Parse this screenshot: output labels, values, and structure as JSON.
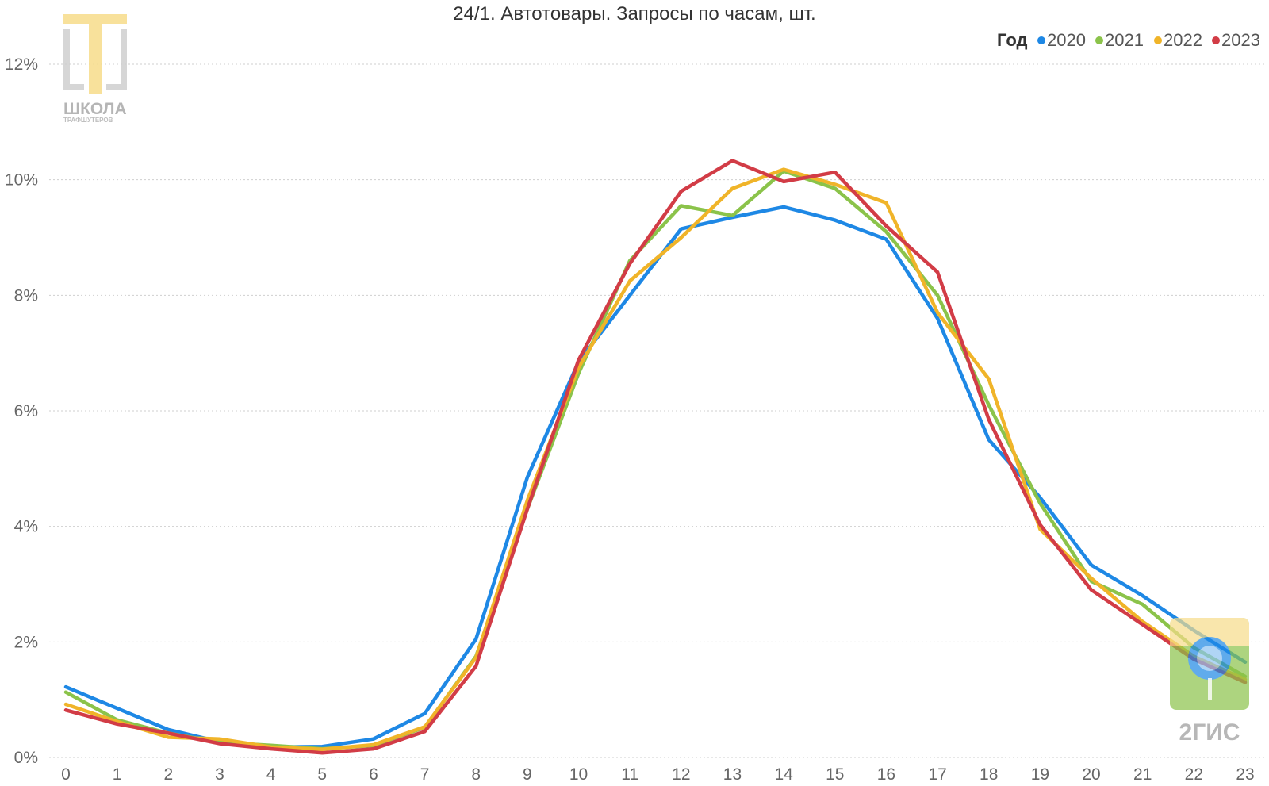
{
  "watermarks": {
    "school_logo": {
      "line1": "ШКОЛА",
      "line2": "ТРАФШУТЕРОВ"
    },
    "gis_logo": {
      "text": "2ГИС"
    }
  },
  "colors": {
    "2020": "#1e88e5",
    "2021": "#8bc34a",
    "2022": "#f0b429",
    "2023": "#d23c46"
  },
  "chart_data": {
    "type": "line",
    "title": "24/1. Автотовары. Запросы по часам, шт.",
    "xlabel": "",
    "ylabel": "",
    "legend_title": "Год",
    "legend_position": "top-right",
    "grid": true,
    "x": [
      0,
      1,
      2,
      3,
      4,
      5,
      6,
      7,
      8,
      9,
      10,
      11,
      12,
      13,
      14,
      15,
      16,
      17,
      18,
      19,
      20,
      21,
      22,
      23
    ],
    "x_tick_labels": [
      "0",
      "1",
      "2",
      "3",
      "4",
      "5",
      "6",
      "7",
      "8",
      "9",
      "10",
      "11",
      "12",
      "13",
      "14",
      "15",
      "16",
      "17",
      "18",
      "19",
      "20",
      "21",
      "22",
      "23"
    ],
    "ylim": [
      0,
      12.4
    ],
    "y_ticks": [
      0,
      2,
      4,
      6,
      8,
      10,
      12
    ],
    "y_tick_labels": [
      "0%",
      "2%",
      "4%",
      "6%",
      "8%",
      "10%",
      "12%"
    ],
    "series": [
      {
        "name": "2020",
        "color": "#1e88e5",
        "values": [
          1.22,
          0.85,
          0.48,
          0.27,
          0.18,
          0.19,
          0.32,
          0.76,
          2.05,
          4.85,
          6.85,
          8.0,
          9.15,
          9.35,
          9.53,
          9.3,
          8.97,
          7.6,
          5.5,
          4.5,
          3.33,
          2.8,
          2.2,
          1.65
        ]
      },
      {
        "name": "2021",
        "color": "#8bc34a",
        "values": [
          1.13,
          0.65,
          0.42,
          0.26,
          0.21,
          0.15,
          0.21,
          0.52,
          1.75,
          4.3,
          6.65,
          8.6,
          9.55,
          9.38,
          10.15,
          9.85,
          9.1,
          8.0,
          6.1,
          4.4,
          3.05,
          2.65,
          1.9,
          1.4
        ]
      },
      {
        "name": "2022",
        "color": "#f0b429",
        "values": [
          0.92,
          0.62,
          0.35,
          0.32,
          0.18,
          0.14,
          0.22,
          0.53,
          1.73,
          4.45,
          6.75,
          8.25,
          9.0,
          9.85,
          10.18,
          9.92,
          9.6,
          7.7,
          6.55,
          3.95,
          3.1,
          2.35,
          1.75,
          1.35
        ]
      },
      {
        "name": "2023",
        "color": "#d23c46",
        "values": [
          0.82,
          0.58,
          0.42,
          0.24,
          0.15,
          0.08,
          0.15,
          0.45,
          1.58,
          4.3,
          6.88,
          8.55,
          9.8,
          10.33,
          9.97,
          10.13,
          9.2,
          8.4,
          5.85,
          4.03,
          2.9,
          2.3,
          1.7,
          1.3
        ]
      }
    ]
  }
}
